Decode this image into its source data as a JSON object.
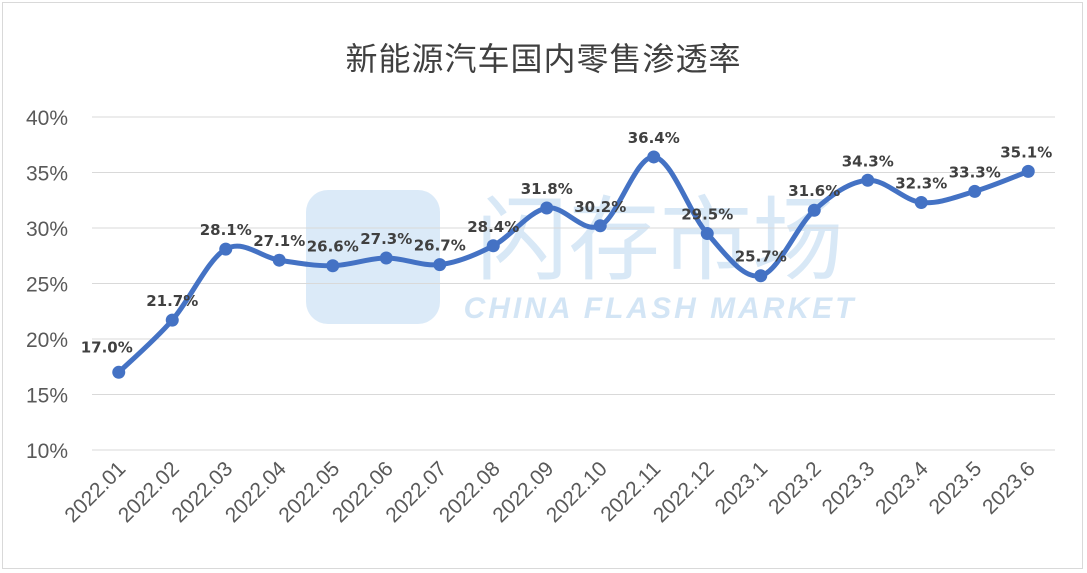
{
  "chart_data": {
    "type": "line",
    "title": "新能源汽车国内零售渗透率",
    "categories": [
      "2022.01",
      "2022.02",
      "2022.03",
      "2022.04",
      "2022.05",
      "2022.06",
      "2022.07",
      "2022.08",
      "2022.09",
      "2022.10",
      "2022.11",
      "2022.12",
      "2023.1",
      "2023.2",
      "2023.3",
      "2023.4",
      "2023.5",
      "2023.6"
    ],
    "series": [
      {
        "values": [
          17.0,
          21.7,
          28.1,
          27.1,
          26.6,
          27.3,
          26.7,
          28.4,
          31.8,
          30.2,
          36.4,
          29.5,
          25.7,
          31.6,
          34.3,
          32.3,
          33.3,
          35.1
        ],
        "labels": [
          "17.0%",
          "21.7%",
          "28.1%",
          "27.1%",
          "26.6%",
          "27.3%",
          "26.7%",
          "28.4%",
          "31.8%",
          "30.2%",
          "36.4%",
          "29.5%",
          "25.7%",
          "31.6%",
          "34.3%",
          "32.3%",
          "33.3%",
          "35.1%"
        ],
        "color": "#4472c4",
        "smooth": true
      }
    ],
    "yticks": [
      "10%",
      "15%",
      "20%",
      "25%",
      "30%",
      "35%",
      "40%"
    ],
    "ylim": [
      10,
      40
    ],
    "grid": true,
    "legend": "none",
    "watermark": {
      "text": "CHINA FLASH MARKET",
      "chinese": "闪存市场",
      "color": "#cfe3f5"
    }
  }
}
